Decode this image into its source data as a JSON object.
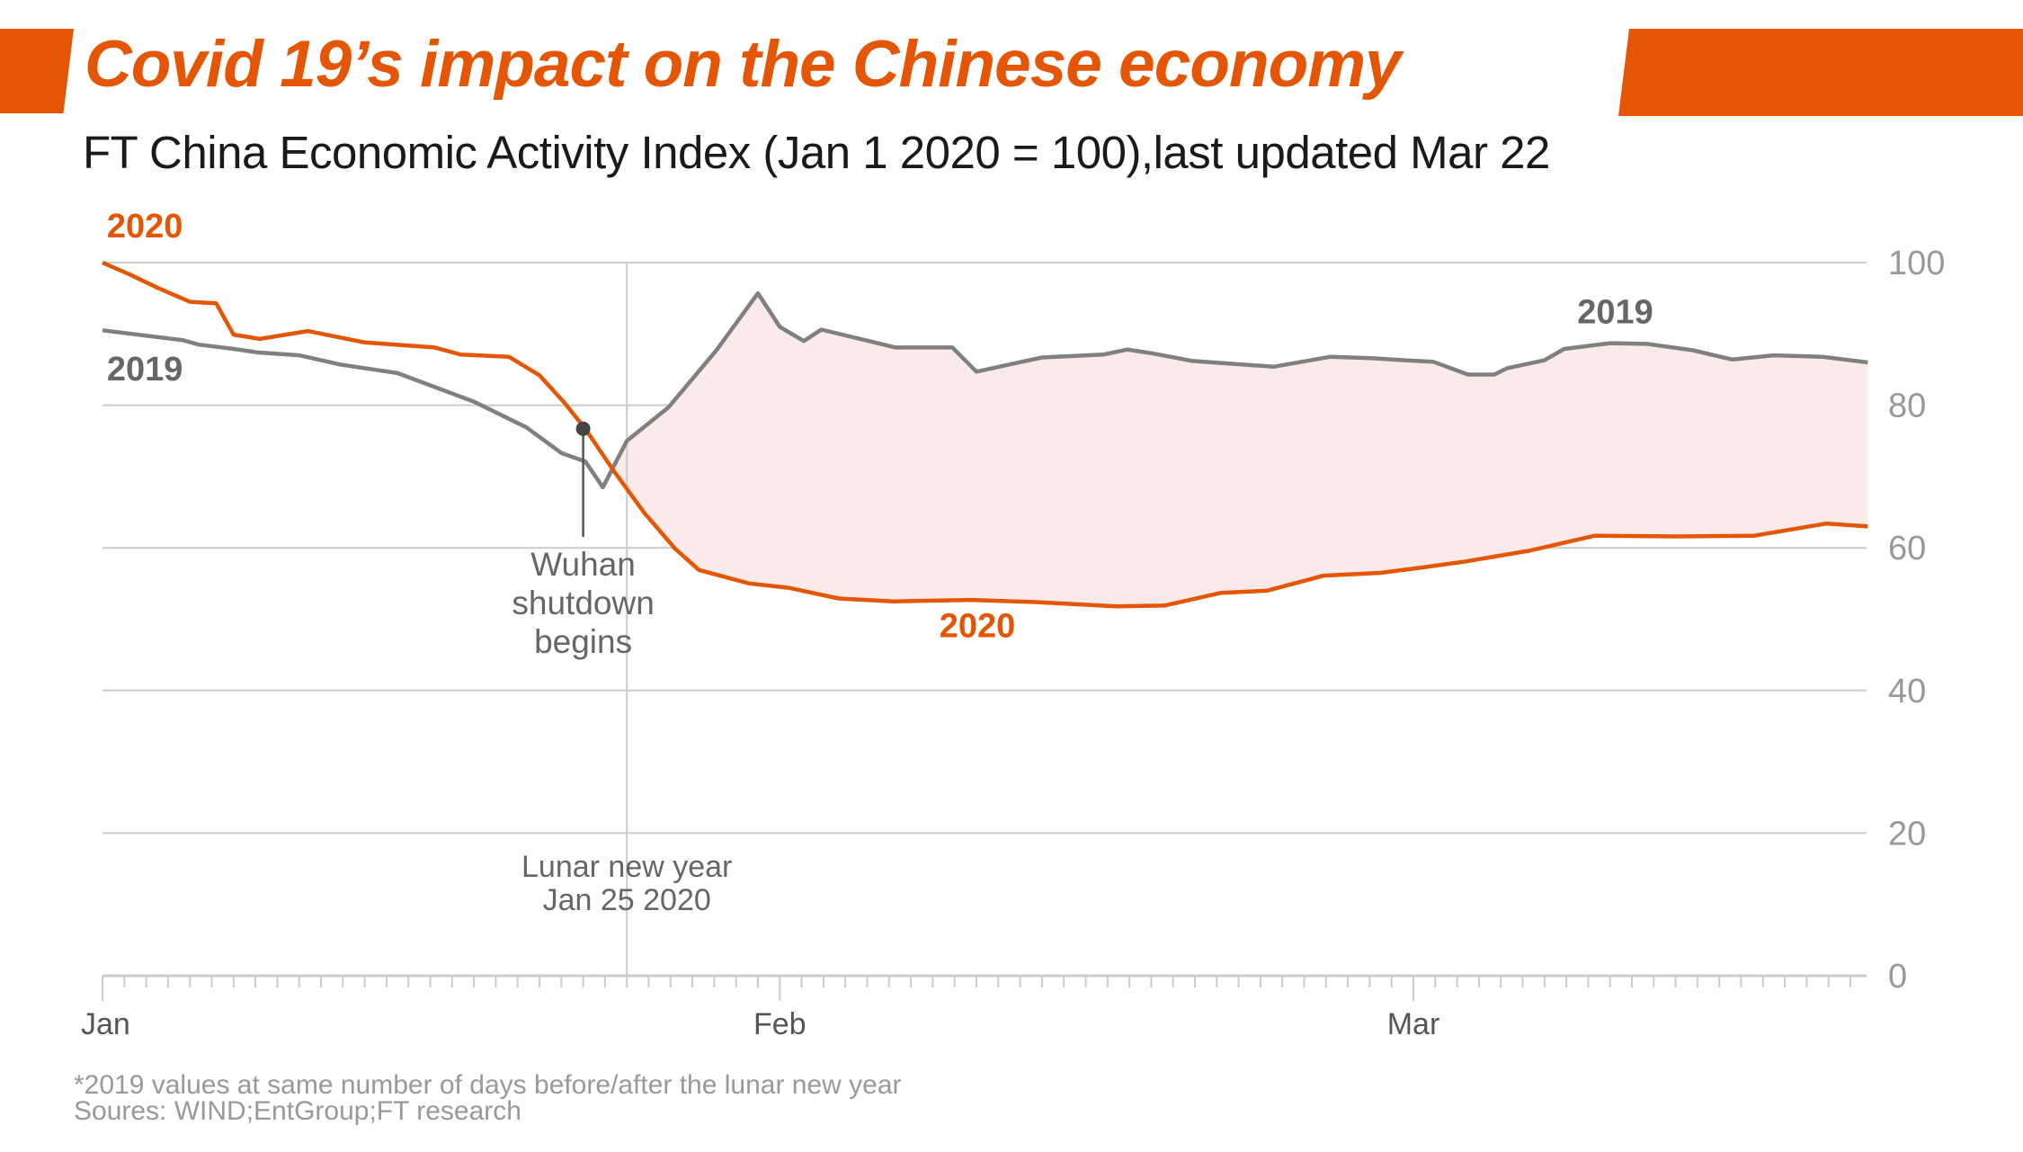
{
  "header": {
    "title": "Covid 19’s impact on the Chinese economy",
    "subtitle": "FT China Economic Activity Index (Jan 1 2020 = 100),last updated Mar 22"
  },
  "colors": {
    "accent": "#e55604",
    "series_2019": "#808080",
    "label_2019": "#666666",
    "gap_fill": "#fbeaea",
    "grid": "#cccccc",
    "axis_text": "#999999",
    "annotation_text": "#666666",
    "marker": "#444444"
  },
  "chart_data": {
    "type": "line",
    "title": "Covid 19’s impact on the Chinese economy",
    "subtitle": "FT China Economic Activity Index (Jan 1 2020 = 100),last updated Mar 22",
    "xlabel": "",
    "ylabel": "",
    "x_unit": "days since Jan 1 2020",
    "xlim": [
      0,
      80.8
    ],
    "ylim": [
      0,
      100
    ],
    "yticks": [
      0,
      20,
      40,
      60,
      80,
      100
    ],
    "y_axis_side": "right",
    "grid": true,
    "x_major_ticks": [
      {
        "day": 0,
        "label": "Jan"
      },
      {
        "day": 31,
        "label": "Feb"
      },
      {
        "day": 60,
        "label": "Mar"
      }
    ],
    "x_minor_tick_every_days": 1,
    "shade_between_series": true,
    "series": [
      {
        "name": "2020",
        "label": "2020",
        "points": [
          [
            0,
            100
          ],
          [
            1.2,
            98.4
          ],
          [
            2.5,
            96.5
          ],
          [
            4,
            94.5
          ],
          [
            5.2,
            94.3
          ],
          [
            6,
            89.9
          ],
          [
            7.2,
            89.3
          ],
          [
            9.4,
            90.4
          ],
          [
            12,
            88.8
          ],
          [
            15.2,
            88.1
          ],
          [
            16.4,
            87.1
          ],
          [
            18.6,
            86.8
          ],
          [
            20,
            84.2
          ],
          [
            21.1,
            80.5
          ],
          [
            22.1,
            76.7
          ],
          [
            23.4,
            70.8
          ],
          [
            24.8,
            64.9
          ],
          [
            26.2,
            59.9
          ],
          [
            27.3,
            56.9
          ],
          [
            29.6,
            55.0
          ],
          [
            31.4,
            54.4
          ],
          [
            33.7,
            52.9
          ],
          [
            36.2,
            52.5
          ],
          [
            39.8,
            52.7
          ],
          [
            42.7,
            52.4
          ],
          [
            46.4,
            51.8
          ],
          [
            48.6,
            51.9
          ],
          [
            51.2,
            53.7
          ],
          [
            53.3,
            54.0
          ],
          [
            55.9,
            56.1
          ],
          [
            58.5,
            56.5
          ],
          [
            60.3,
            57.2
          ],
          [
            62.4,
            58.1
          ],
          [
            65.3,
            59.6
          ],
          [
            68.3,
            61.7
          ],
          [
            72.1,
            61.6
          ],
          [
            75.6,
            61.7
          ],
          [
            78.9,
            63.4
          ],
          [
            80.8,
            63.0
          ]
        ]
      },
      {
        "name": "2019",
        "label": "2019",
        "note": "*",
        "points": [
          [
            0,
            90.5
          ],
          [
            3.7,
            89.1
          ],
          [
            4.4,
            88.5
          ],
          [
            6,
            87.9
          ],
          [
            7.1,
            87.4
          ],
          [
            9,
            87.0
          ],
          [
            10.9,
            85.7
          ],
          [
            13.5,
            84.5
          ],
          [
            17,
            80.5
          ],
          [
            19.4,
            76.9
          ],
          [
            21,
            73.3
          ],
          [
            22.1,
            72.1
          ],
          [
            22.9,
            68.5
          ],
          [
            24,
            75.0
          ],
          [
            25.9,
            79.7
          ],
          [
            28.1,
            87.7
          ],
          [
            30,
            95.7
          ],
          [
            31,
            91.0
          ],
          [
            32.1,
            89.0
          ],
          [
            32.9,
            90.6
          ],
          [
            36.3,
            88.1
          ],
          [
            38.9,
            88.1
          ],
          [
            40,
            84.7
          ],
          [
            43,
            86.7
          ],
          [
            45.8,
            87.1
          ],
          [
            46.9,
            87.8
          ],
          [
            48,
            87.3
          ],
          [
            49.9,
            86.2
          ],
          [
            53.6,
            85.4
          ],
          [
            56.2,
            86.8
          ],
          [
            58.1,
            86.6
          ],
          [
            59.6,
            86.3
          ],
          [
            60.9,
            86.1
          ],
          [
            62.5,
            84.3
          ],
          [
            63.7,
            84.3
          ],
          [
            64.3,
            85.2
          ],
          [
            66,
            86.3
          ],
          [
            66.9,
            87.9
          ],
          [
            69,
            88.7
          ],
          [
            70.7,
            88.6
          ],
          [
            72.8,
            87.7
          ],
          [
            74.6,
            86.4
          ],
          [
            76.5,
            87.0
          ],
          [
            78.7,
            86.8
          ],
          [
            80.8,
            86.0
          ]
        ]
      }
    ],
    "series_labels": [
      {
        "series": "2020",
        "text": "2020",
        "near_day": 0.2,
        "near_value": 103.5
      },
      {
        "series": "2019",
        "text": "2019",
        "near_day": 0.2,
        "near_value": 83.5
      },
      {
        "series": "2019",
        "text": "2019",
        "near_day": 67.5,
        "near_value": 91.5
      },
      {
        "series": "2020",
        "text": "2020",
        "near_day": 38.3,
        "near_value": 47.5
      }
    ],
    "annotations": [
      {
        "name": "wuhan-shutdown",
        "day": 22,
        "value": 76.7,
        "lines": [
          "Wuhan",
          "shutdown",
          "begins"
        ]
      },
      {
        "name": "lunar-new-year",
        "day": 24,
        "lines": [
          "Lunar new year",
          "Jan 25 2020"
        ]
      }
    ]
  },
  "footer": {
    "note": "*2019 values at same number of days before/after the lunar new year",
    "sources": "Soures: WIND;EntGroup;FT research"
  }
}
